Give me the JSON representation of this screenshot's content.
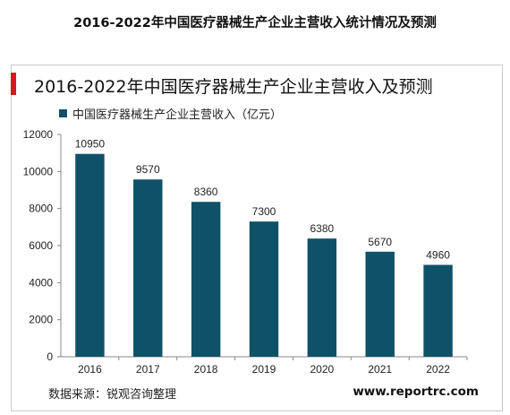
{
  "page_title": "2016-2022年中国医疗器械生产企业主营收入统计情况及预测",
  "source_text": "数据来源：锐观咨询整理",
  "site_text": "www.reportrc.com",
  "colors": {
    "bar": "#0f5168",
    "accent": "#d7191c",
    "axis": "#888888"
  },
  "chart_data": {
    "type": "bar",
    "title": "2016-2022年中国医疗器械生产企业主营收入及预测",
    "legend": "中国医疗器械生产企业主营收入（亿元）",
    "categories": [
      "2016",
      "2017",
      "2018",
      "2019",
      "2020",
      "2021",
      "2022"
    ],
    "values": [
      10950,
      9570,
      8360,
      7300,
      6380,
      5670,
      4960
    ],
    "data_labels": [
      "10950",
      "9570",
      "8360",
      "7300",
      "6380",
      "5670",
      "4960"
    ],
    "yticks": [
      "0",
      "2000",
      "4000",
      "6000",
      "8000",
      "10000",
      "12000"
    ],
    "ylim": [
      0,
      12000
    ],
    "grid": false,
    "legend_position": "top-left"
  }
}
